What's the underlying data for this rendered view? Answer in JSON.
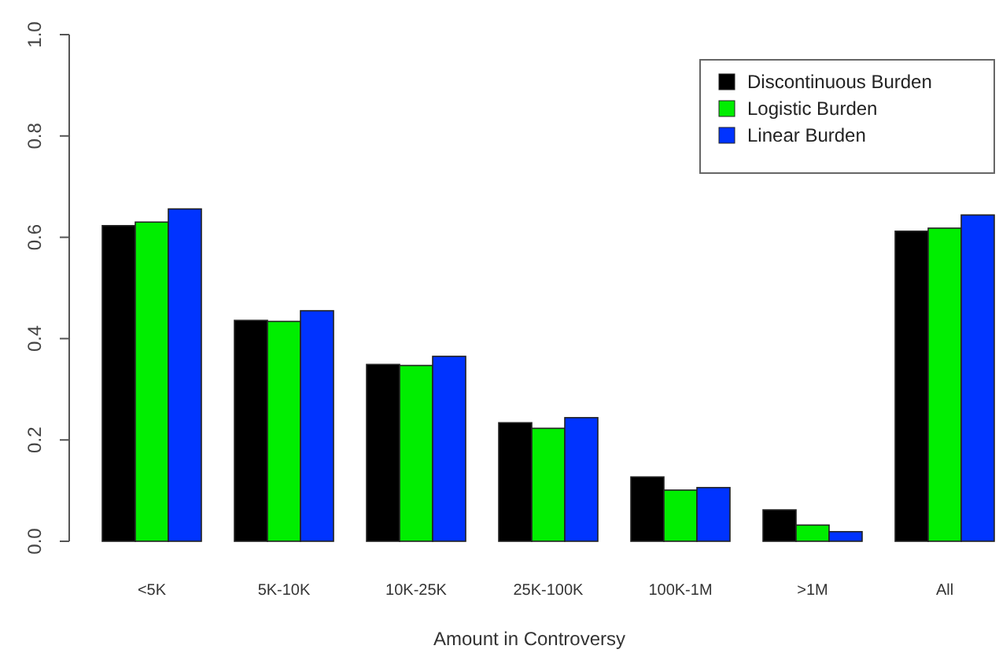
{
  "chart_data": {
    "type": "bar",
    "xlabel": "Amount in Controversy",
    "categories": [
      "<5K",
      "5K-10K",
      "10K-25K",
      "25K-100K",
      "100K-1M",
      ">1M",
      "All"
    ],
    "series": [
      {
        "name": "Discontinuous Burden",
        "color": "#000000",
        "values": [
          0.623,
          0.436,
          0.349,
          0.234,
          0.127,
          0.062,
          0.612
        ]
      },
      {
        "name": "Logistic Burden",
        "color": "#00ee00",
        "values": [
          0.63,
          0.434,
          0.347,
          0.223,
          0.101,
          0.032,
          0.618
        ]
      },
      {
        "name": "Linear Burden",
        "color": "#0033ff",
        "values": [
          0.656,
          0.455,
          0.365,
          0.244,
          0.106,
          0.019,
          0.644
        ]
      }
    ],
    "ylim": [
      0,
      1
    ],
    "yticks": [
      {
        "value": 0,
        "label": "0.0"
      },
      {
        "value": 0.2,
        "label": "0.2"
      },
      {
        "value": 0.4,
        "label": "0.4"
      },
      {
        "value": 0.6,
        "label": "0.6"
      },
      {
        "value": 0.8,
        "label": "0.8"
      },
      {
        "value": 1,
        "label": "1.0"
      }
    ],
    "grid": false,
    "legend": "top right"
  }
}
